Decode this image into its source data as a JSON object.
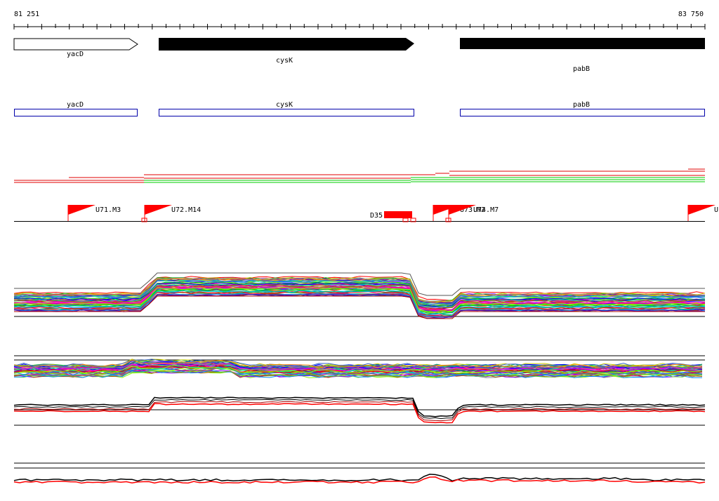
{
  "ruler": {
    "start_label": "81 251",
    "end_label": "83 750"
  },
  "genes": [
    {
      "name": "yacD",
      "strand": "+",
      "filled": false
    },
    {
      "name": "cysK",
      "strand": "+",
      "filled": true
    },
    {
      "name": "pabB",
      "strand": "+",
      "filled": true
    }
  ],
  "gene_boxes": [
    {
      "name": "yacD"
    },
    {
      "name": "cysK"
    },
    {
      "name": "pabB"
    }
  ],
  "markers": [
    {
      "label": "U71.M3"
    },
    {
      "label": "U72.M14"
    },
    {
      "label": "D35"
    },
    {
      "label": "U73.M2"
    },
    {
      "label": "U74.M7"
    },
    {
      "label": "U"
    }
  ],
  "colors": {
    "gene_box": "#0000aa",
    "flag": "#ff0000",
    "highlight": "#ff0000"
  }
}
